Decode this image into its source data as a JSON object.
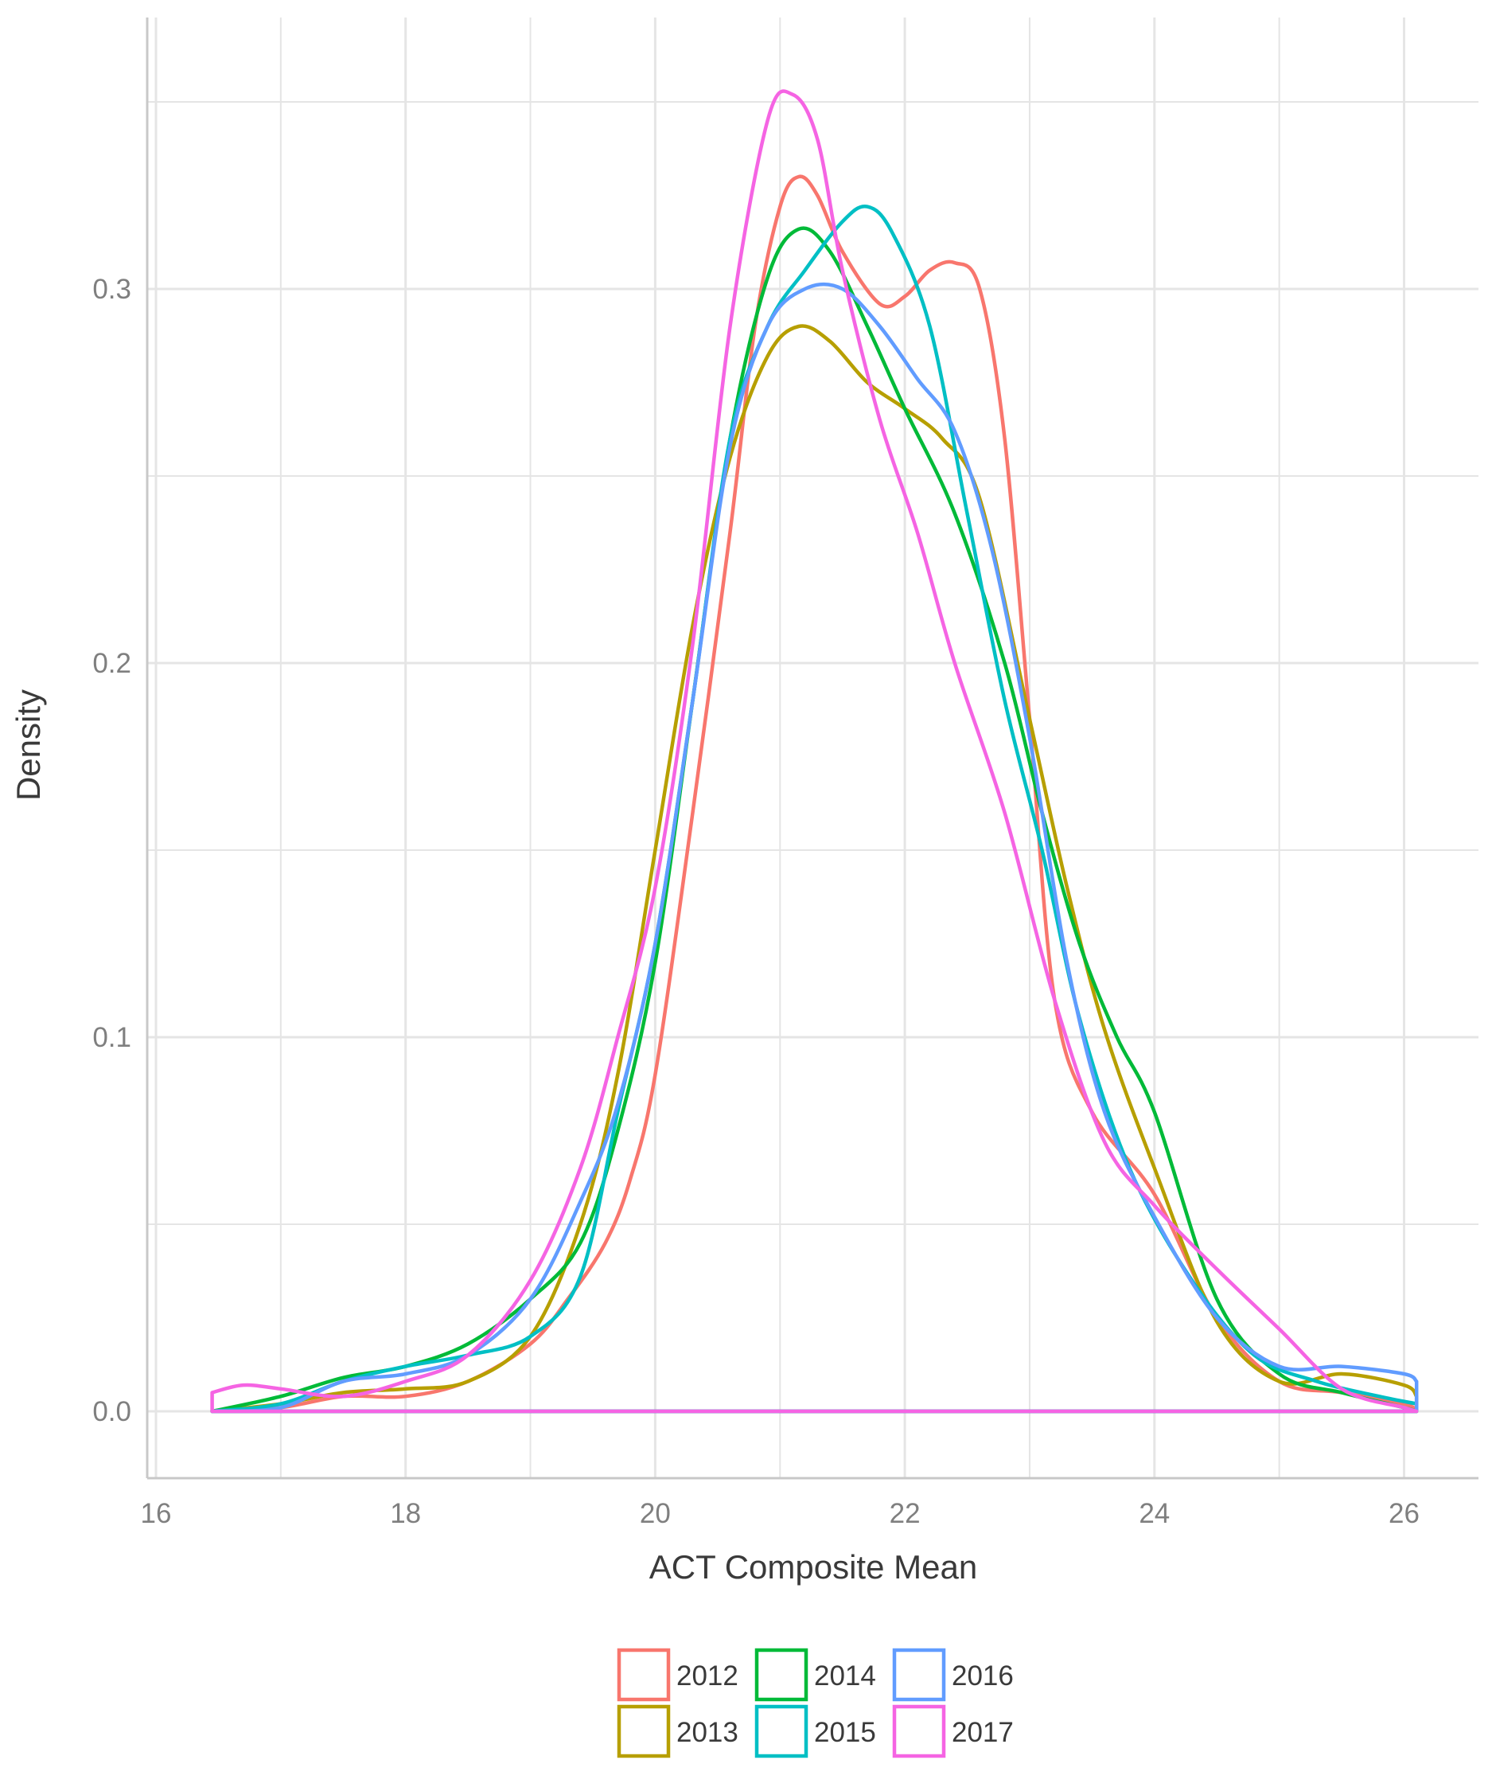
{
  "chart_data": {
    "type": "line",
    "title": "",
    "xlabel": "ACT Composite Mean",
    "ylabel": "Density",
    "xlim": [
      16,
      26
    ],
    "ylim": [
      0,
      0.35
    ],
    "x_ticks": [
      16,
      18,
      20,
      22,
      24,
      26
    ],
    "x_tick_labels": [
      "16",
      "18",
      "20",
      "22",
      "24",
      "26"
    ],
    "y_ticks": [
      0.0,
      0.1,
      0.2,
      0.3
    ],
    "y_tick_labels": [
      "0.0",
      "0.1",
      "0.2",
      "0.3"
    ],
    "grid": true,
    "legend_position": "bottom",
    "series": [
      {
        "name": "2012",
        "color": "#F8766D",
        "points": [
          [
            16.45,
            0.0
          ],
          [
            17.0,
            0.001
          ],
          [
            17.5,
            0.004
          ],
          [
            18.0,
            0.004
          ],
          [
            18.5,
            0.008
          ],
          [
            19.0,
            0.018
          ],
          [
            19.3,
            0.03
          ],
          [
            19.6,
            0.045
          ],
          [
            19.8,
            0.062
          ],
          [
            20.0,
            0.09
          ],
          [
            20.3,
            0.16
          ],
          [
            20.6,
            0.235
          ],
          [
            20.8,
            0.29
          ],
          [
            21.0,
            0.322
          ],
          [
            21.15,
            0.33
          ],
          [
            21.3,
            0.325
          ],
          [
            21.5,
            0.31
          ],
          [
            21.8,
            0.296
          ],
          [
            22.0,
            0.298
          ],
          [
            22.2,
            0.305
          ],
          [
            22.4,
            0.307
          ],
          [
            22.6,
            0.3
          ],
          [
            22.8,
            0.26
          ],
          [
            23.0,
            0.185
          ],
          [
            23.2,
            0.11
          ],
          [
            23.5,
            0.08
          ],
          [
            24.0,
            0.058
          ],
          [
            24.5,
            0.025
          ],
          [
            25.0,
            0.008
          ],
          [
            25.5,
            0.005
          ],
          [
            26.0,
            0.002
          ],
          [
            26.1,
            0.0
          ]
        ]
      },
      {
        "name": "2013",
        "color": "#B79F00",
        "points": [
          [
            16.45,
            0.0
          ],
          [
            17.0,
            0.002
          ],
          [
            17.5,
            0.005
          ],
          [
            18.0,
            0.006
          ],
          [
            18.5,
            0.008
          ],
          [
            19.0,
            0.02
          ],
          [
            19.4,
            0.05
          ],
          [
            19.7,
            0.09
          ],
          [
            20.0,
            0.15
          ],
          [
            20.3,
            0.21
          ],
          [
            20.6,
            0.255
          ],
          [
            20.9,
            0.282
          ],
          [
            21.15,
            0.29
          ],
          [
            21.4,
            0.286
          ],
          [
            21.7,
            0.275
          ],
          [
            22.0,
            0.268
          ],
          [
            22.3,
            0.26
          ],
          [
            22.6,
            0.244
          ],
          [
            23.0,
            0.185
          ],
          [
            23.3,
            0.14
          ],
          [
            23.6,
            0.102
          ],
          [
            24.0,
            0.065
          ],
          [
            24.5,
            0.024
          ],
          [
            25.0,
            0.008
          ],
          [
            25.5,
            0.01
          ],
          [
            26.0,
            0.007
          ],
          [
            26.1,
            0.004
          ]
        ]
      },
      {
        "name": "2014",
        "color": "#00BA38",
        "points": [
          [
            16.45,
            0.0
          ],
          [
            17.0,
            0.004
          ],
          [
            17.5,
            0.009
          ],
          [
            18.0,
            0.012
          ],
          [
            18.5,
            0.018
          ],
          [
            19.0,
            0.03
          ],
          [
            19.4,
            0.045
          ],
          [
            19.7,
            0.075
          ],
          [
            20.0,
            0.12
          ],
          [
            20.3,
            0.19
          ],
          [
            20.6,
            0.26
          ],
          [
            20.9,
            0.303
          ],
          [
            21.15,
            0.316
          ],
          [
            21.4,
            0.31
          ],
          [
            21.7,
            0.29
          ],
          [
            22.0,
            0.268
          ],
          [
            22.4,
            0.24
          ],
          [
            22.8,
            0.2
          ],
          [
            23.1,
            0.16
          ],
          [
            23.4,
            0.125
          ],
          [
            23.7,
            0.1
          ],
          [
            24.0,
            0.08
          ],
          [
            24.5,
            0.03
          ],
          [
            25.0,
            0.01
          ],
          [
            25.5,
            0.005
          ],
          [
            26.0,
            0.001
          ],
          [
            26.1,
            0.0
          ]
        ]
      },
      {
        "name": "2015",
        "color": "#00BFC4",
        "points": [
          [
            16.45,
            0.0
          ],
          [
            17.0,
            0.002
          ],
          [
            17.5,
            0.008
          ],
          [
            18.0,
            0.012
          ],
          [
            18.5,
            0.015
          ],
          [
            19.0,
            0.02
          ],
          [
            19.4,
            0.036
          ],
          [
            19.7,
            0.08
          ],
          [
            20.0,
            0.125
          ],
          [
            20.3,
            0.19
          ],
          [
            20.6,
            0.26
          ],
          [
            20.9,
            0.29
          ],
          [
            21.2,
            0.305
          ],
          [
            21.5,
            0.318
          ],
          [
            21.7,
            0.322
          ],
          [
            21.9,
            0.315
          ],
          [
            22.2,
            0.29
          ],
          [
            22.5,
            0.24
          ],
          [
            22.8,
            0.19
          ],
          [
            23.1,
            0.15
          ],
          [
            23.4,
            0.105
          ],
          [
            23.8,
            0.065
          ],
          [
            24.3,
            0.035
          ],
          [
            24.8,
            0.015
          ],
          [
            25.3,
            0.008
          ],
          [
            25.8,
            0.004
          ],
          [
            26.1,
            0.002
          ]
        ]
      },
      {
        "name": "2016",
        "color": "#619CFF",
        "points": [
          [
            16.45,
            0.0
          ],
          [
            17.0,
            0.001
          ],
          [
            17.5,
            0.008
          ],
          [
            18.0,
            0.01
          ],
          [
            18.5,
            0.015
          ],
          [
            19.0,
            0.03
          ],
          [
            19.4,
            0.056
          ],
          [
            19.7,
            0.082
          ],
          [
            20.0,
            0.125
          ],
          [
            20.3,
            0.19
          ],
          [
            20.6,
            0.258
          ],
          [
            20.9,
            0.29
          ],
          [
            21.2,
            0.3
          ],
          [
            21.5,
            0.3
          ],
          [
            21.8,
            0.29
          ],
          [
            22.1,
            0.276
          ],
          [
            22.4,
            0.262
          ],
          [
            22.7,
            0.23
          ],
          [
            23.0,
            0.18
          ],
          [
            23.3,
            0.12
          ],
          [
            23.6,
            0.08
          ],
          [
            24.0,
            0.052
          ],
          [
            24.5,
            0.025
          ],
          [
            25.0,
            0.012
          ],
          [
            25.5,
            0.012
          ],
          [
            26.0,
            0.01
          ],
          [
            26.1,
            0.008
          ]
        ]
      },
      {
        "name": "2017",
        "color": "#F564E3",
        "points": [
          [
            16.45,
            0.005
          ],
          [
            16.7,
            0.007
          ],
          [
            17.0,
            0.006
          ],
          [
            17.5,
            0.004
          ],
          [
            18.0,
            0.008
          ],
          [
            18.5,
            0.015
          ],
          [
            19.0,
            0.035
          ],
          [
            19.4,
            0.065
          ],
          [
            19.7,
            0.1
          ],
          [
            20.0,
            0.14
          ],
          [
            20.3,
            0.205
          ],
          [
            20.6,
            0.29
          ],
          [
            20.9,
            0.345
          ],
          [
            21.1,
            0.352
          ],
          [
            21.3,
            0.34
          ],
          [
            21.5,
            0.305
          ],
          [
            21.8,
            0.265
          ],
          [
            22.1,
            0.235
          ],
          [
            22.4,
            0.2
          ],
          [
            22.8,
            0.16
          ],
          [
            23.2,
            0.11
          ],
          [
            23.6,
            0.072
          ],
          [
            24.0,
            0.055
          ],
          [
            24.5,
            0.038
          ],
          [
            25.0,
            0.022
          ],
          [
            25.5,
            0.006
          ],
          [
            26.0,
            0.001
          ],
          [
            26.1,
            0.0
          ]
        ]
      }
    ]
  }
}
